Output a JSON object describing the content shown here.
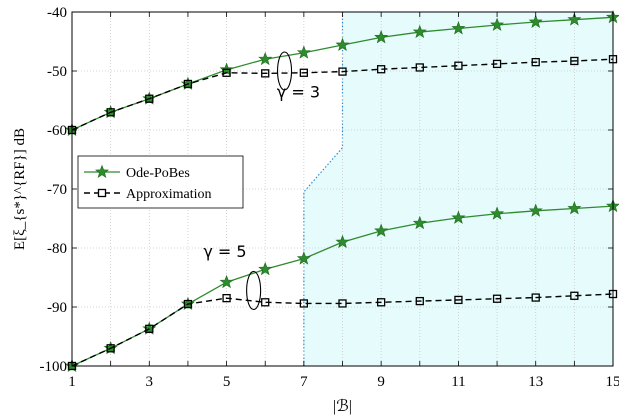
{
  "chart_data": {
    "type": "line",
    "xlabel": "|ℬ|",
    "ylabel": "E[ξ_{s*}^{RF}] dB",
    "xlim": [
      1,
      15
    ],
    "ylim": [
      -100,
      -40
    ],
    "xticks": [
      1,
      3,
      5,
      7,
      9,
      11,
      13,
      15
    ],
    "yticks": [
      -100,
      -90,
      -80,
      -70,
      -60,
      -50,
      -40
    ],
    "xtick_labels": [
      "1",
      "3",
      "5",
      "7",
      "9",
      "11",
      "13",
      "15"
    ],
    "ytick_labels": [
      "-100",
      "-90",
      "-80",
      "-70",
      "-60",
      "-50",
      "-40"
    ],
    "grid": true,
    "legend_position": "center-left",
    "legend": [
      "Ode-PoBes",
      "Approximation"
    ],
    "series": [
      {
        "name": "Ode-PoBes",
        "group": "γ = 3",
        "color": "#2e8b2e",
        "marker": "star",
        "linestyle": "solid",
        "x": [
          1,
          2,
          3,
          4,
          5,
          6,
          7,
          8,
          9,
          10,
          11,
          12,
          13,
          14,
          15
        ],
        "y": [
          -60,
          -57,
          -54.7,
          -52.2,
          -49.8,
          -48,
          -46.9,
          -45.6,
          -44.3,
          -43.4,
          -42.8,
          -42.2,
          -41.7,
          -41.3,
          -40.9
        ]
      },
      {
        "name": "Approximation",
        "group": "γ = 3",
        "color": "#000000",
        "marker": "square",
        "linestyle": "dashed",
        "x": [
          1,
          2,
          3,
          4,
          5,
          6,
          7,
          8,
          9,
          10,
          11,
          12,
          13,
          14,
          15
        ],
        "y": [
          -60,
          -57,
          -54.7,
          -52.2,
          -50.3,
          -50.4,
          -50.3,
          -50.1,
          -49.7,
          -49.4,
          -49.1,
          -48.8,
          -48.5,
          -48.3,
          -48
        ]
      },
      {
        "name": "Ode-PoBes",
        "group": "γ = 5",
        "color": "#2e8b2e",
        "marker": "star",
        "linestyle": "solid",
        "x": [
          1,
          2,
          3,
          4,
          5,
          6,
          7,
          8,
          9,
          10,
          11,
          12,
          13,
          14,
          15
        ],
        "y": [
          -100,
          -97,
          -93.7,
          -89.5,
          -85.8,
          -83.6,
          -81.8,
          -79,
          -77.1,
          -75.8,
          -74.9,
          -74.2,
          -73.7,
          -73.3,
          -72.9
        ]
      },
      {
        "name": "Approximation",
        "group": "γ = 5",
        "color": "#000000",
        "marker": "square",
        "linestyle": "dashed",
        "x": [
          1,
          2,
          3,
          4,
          5,
          6,
          7,
          8,
          9,
          10,
          11,
          12,
          13,
          14,
          15
        ],
        "y": [
          -100,
          -97,
          -93.7,
          -89.5,
          -88.5,
          -89.2,
          -89.4,
          -89.4,
          -89.2,
          -89,
          -88.8,
          -88.6,
          -88.4,
          -88.1,
          -87.8
        ]
      }
    ],
    "shaded_region": {
      "color": "#e6fbfb",
      "border_color": "#2a8fd6",
      "boundary": [
        [
          7,
          -100
        ],
        [
          7,
          -70.5
        ],
        [
          8,
          -63
        ],
        [
          8,
          -40
        ]
      ]
    },
    "annotations": [
      {
        "text": "γ = 3",
        "x": 6.3,
        "y": -54.5,
        "ellipse_center": [
          6.5,
          -50
        ]
      },
      {
        "text": "γ = 5",
        "x": 4.4,
        "y": -81.5,
        "ellipse_center": [
          5.7,
          -87.2
        ]
      }
    ]
  }
}
